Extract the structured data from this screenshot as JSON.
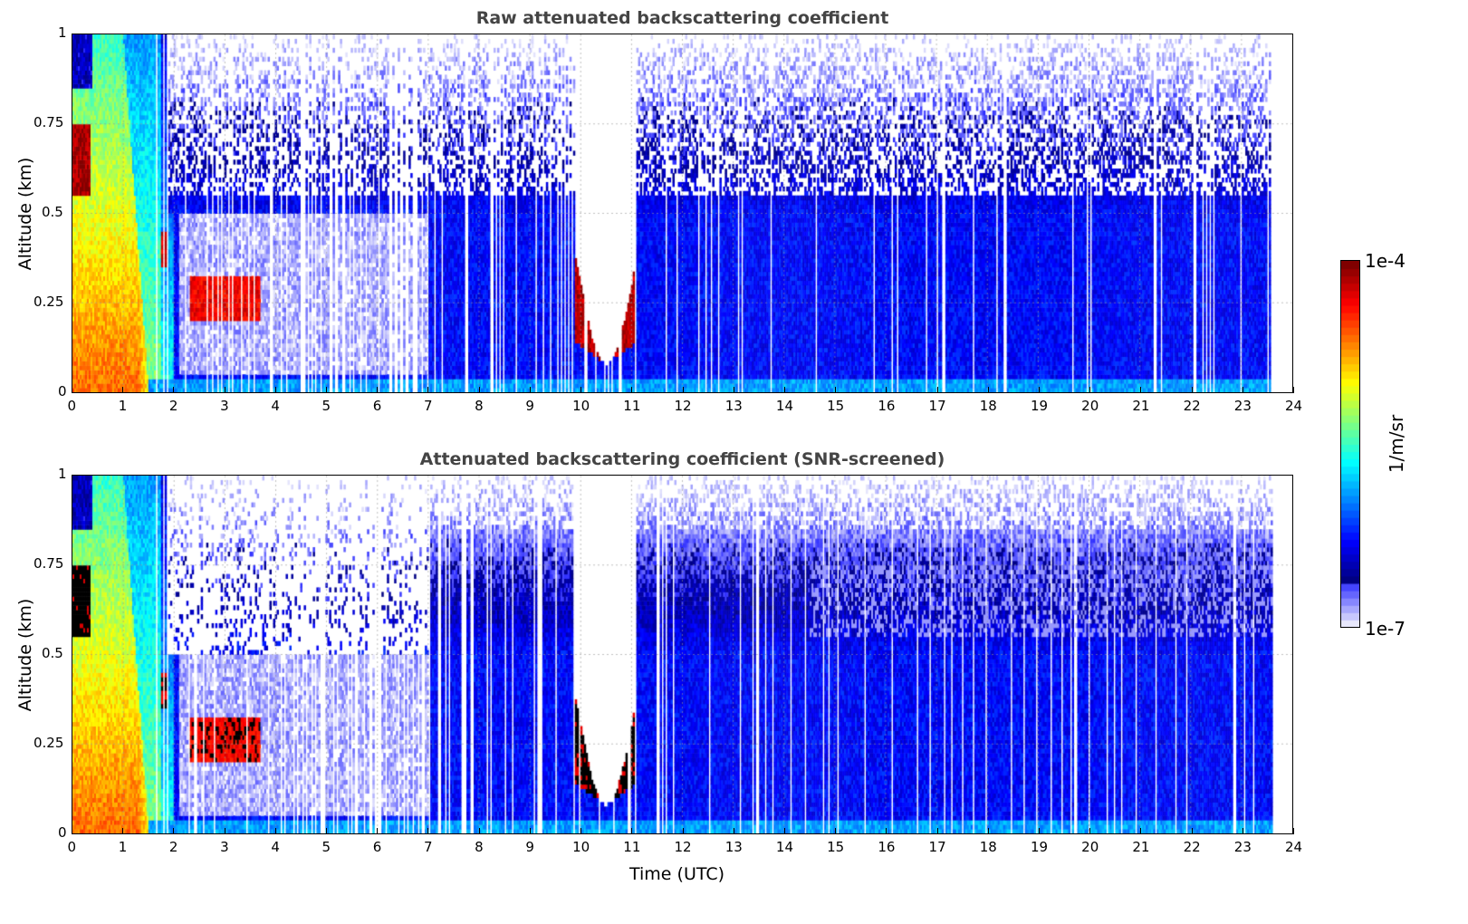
{
  "chart_data": [
    {
      "type": "heatmap",
      "title": "Raw attenuated backscattering coefficient",
      "xlabel": "",
      "ylabel": "Altitude (km)",
      "xlim": [
        0,
        24
      ],
      "ylim": [
        0,
        1
      ],
      "xticks": [
        "0",
        "1",
        "2",
        "3",
        "4",
        "5",
        "6",
        "7",
        "8",
        "9",
        "10",
        "11",
        "12",
        "13",
        "14",
        "15",
        "16",
        "17",
        "18",
        "19",
        "20",
        "21",
        "22",
        "23",
        "24"
      ],
      "yticks": [
        "0",
        "0.25",
        "0.5",
        "0.75",
        "1"
      ],
      "grid": true,
      "data_end_time": 23.6,
      "features": [
        {
          "name": "low aerosol/fog layer",
          "time": [
            0,
            1.7
          ],
          "alt": [
            0,
            1
          ],
          "log10_value": -4.8
        },
        {
          "name": "layer near 0.25 km",
          "time": [
            2.3,
            3.7
          ],
          "alt": [
            0.2,
            0.33
          ],
          "log10_value": -4.3
        },
        {
          "name": "low cloud",
          "time": [
            10,
            11.1
          ],
          "alt": [
            0.08,
            0.4
          ],
          "log10_value": -4.2
        },
        {
          "name": "boundary layer background",
          "time": [
            2,
            23.6
          ],
          "alt": [
            0,
            0.5
          ],
          "log10_value": -6.3
        }
      ]
    },
    {
      "type": "heatmap",
      "title": "Attenuated backscattering coefficient (SNR-screened)",
      "xlabel": "Time (UTC)",
      "ylabel": "Altitude (km)",
      "xlim": [
        0,
        24
      ],
      "ylim": [
        0,
        1
      ],
      "xticks": [
        "0",
        "1",
        "2",
        "3",
        "4",
        "5",
        "6",
        "7",
        "8",
        "9",
        "10",
        "11",
        "12",
        "13",
        "14",
        "15",
        "16",
        "17",
        "18",
        "19",
        "20",
        "21",
        "22",
        "23",
        "24"
      ],
      "yticks": [
        "0",
        "0.25",
        "0.5",
        "0.75",
        "1"
      ],
      "grid": true,
      "data_end_time": 23.6
    }
  ],
  "colorbar": {
    "label": "1/m/sr",
    "max_label": "1e-4",
    "min_label": "1e-7",
    "scale": "log",
    "range": [
      1e-07,
      0.0001
    ]
  }
}
